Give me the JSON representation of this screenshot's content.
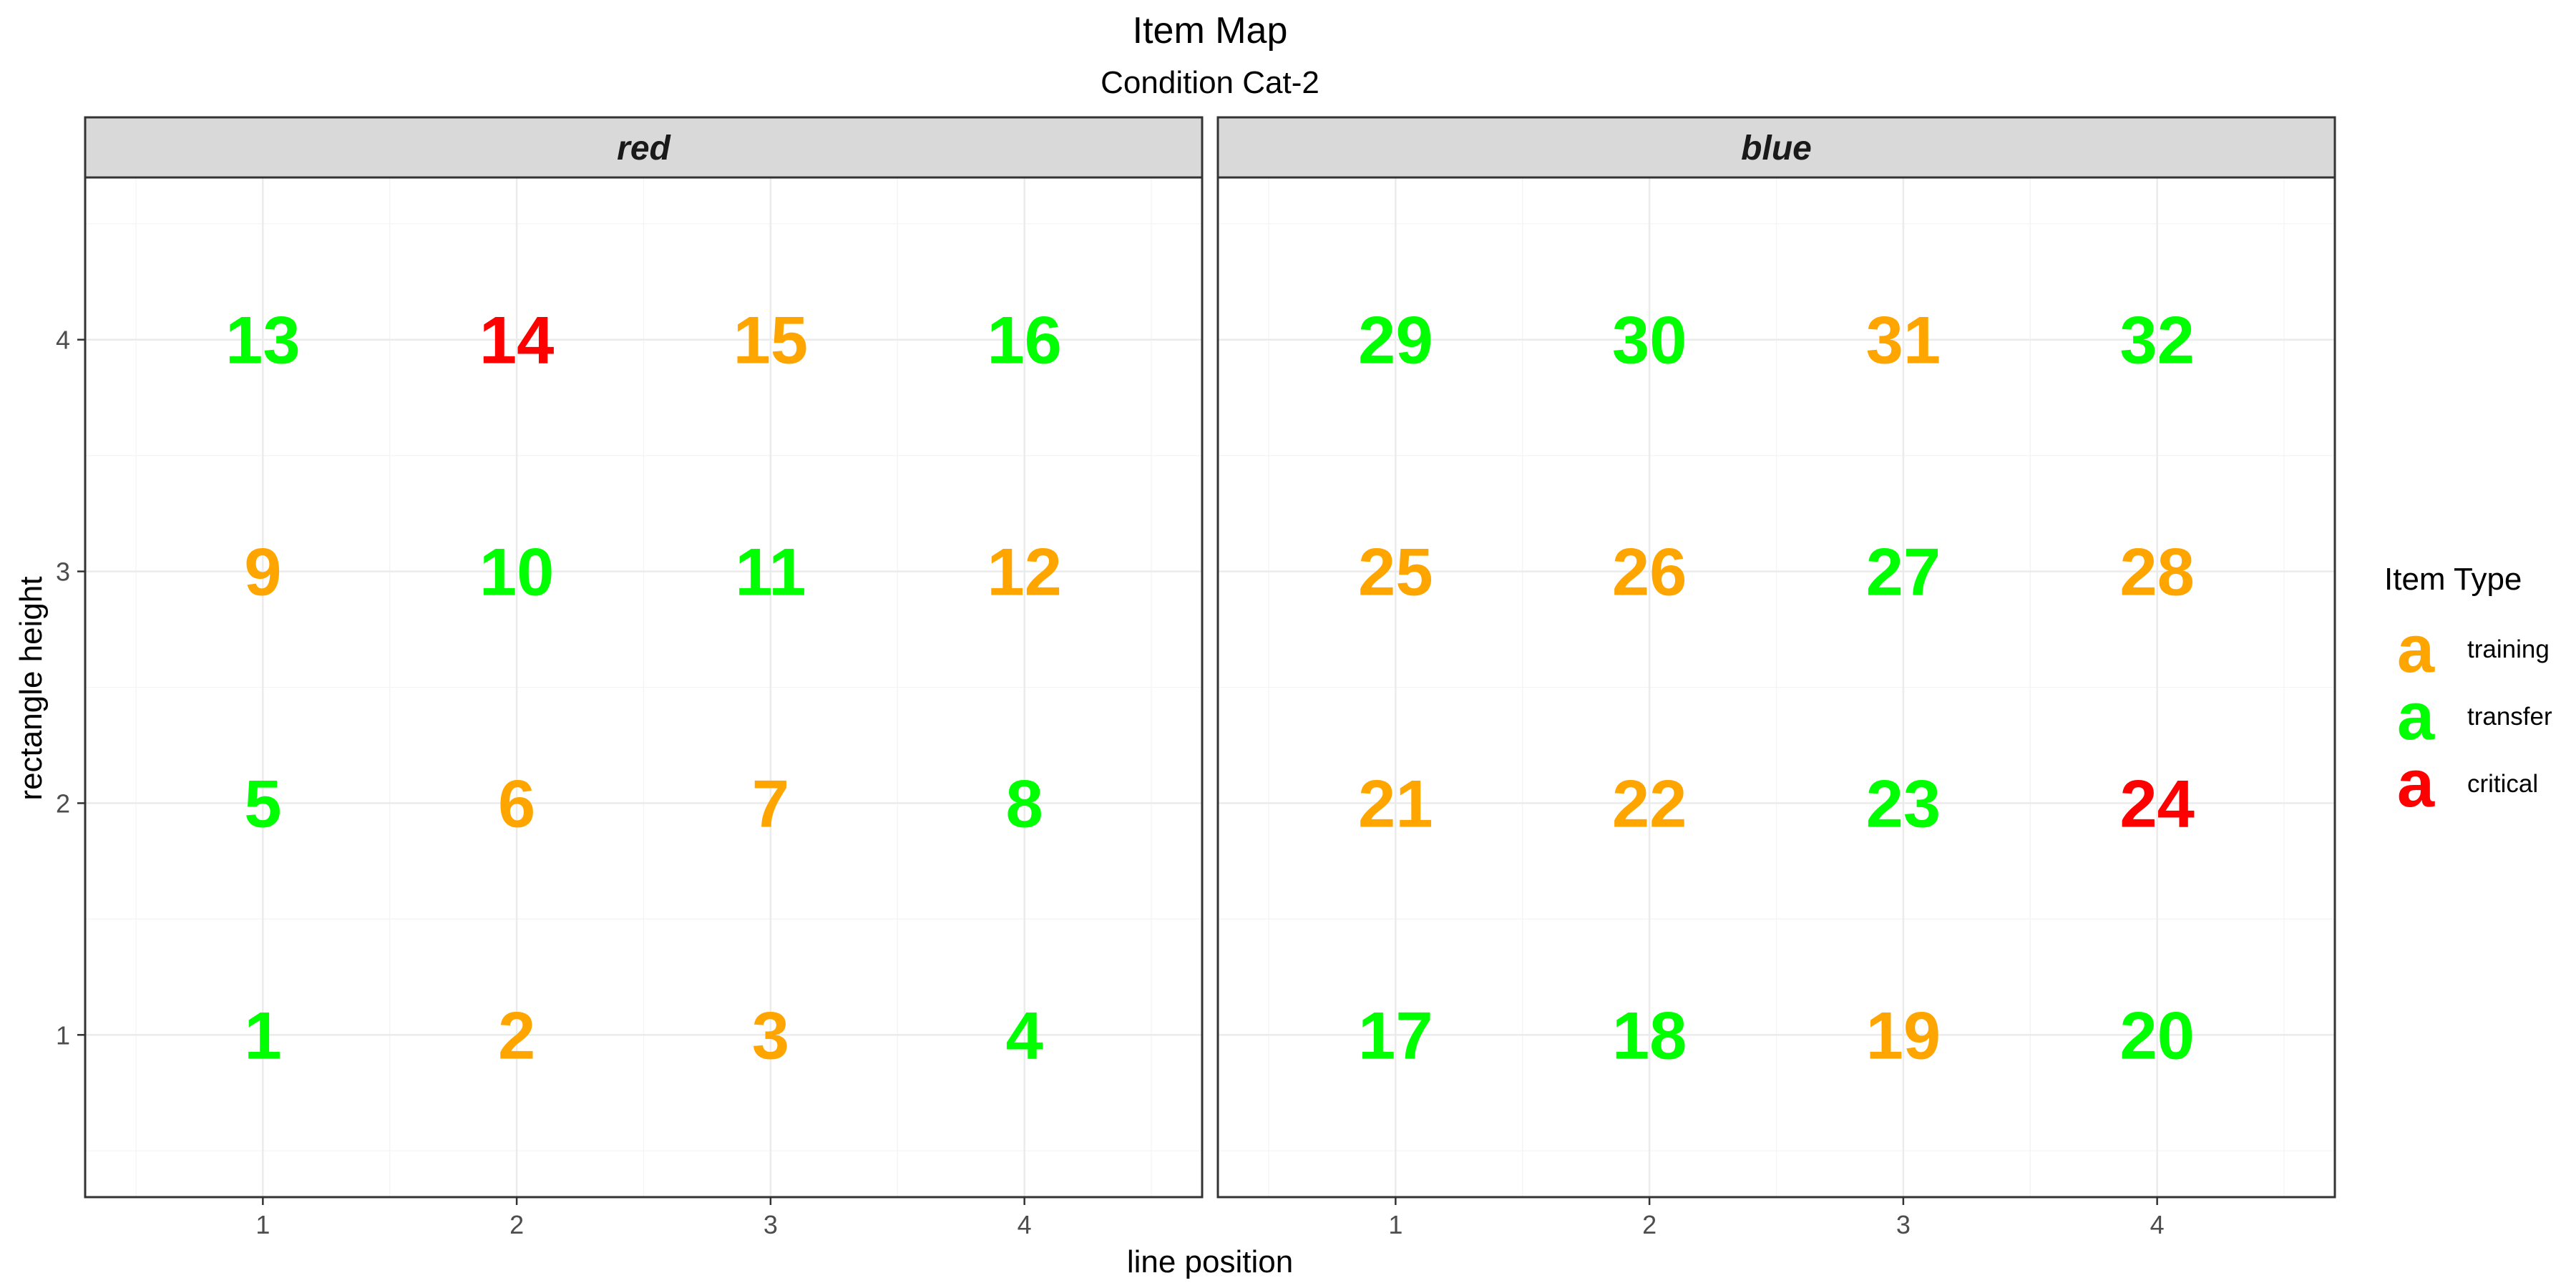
{
  "chart_data": {
    "type": "scatter",
    "title": "Item Map",
    "subtitle": "Condition Cat-2",
    "xlabel": "line position",
    "ylabel": "rectangle height",
    "xlim": [
      0.3,
      4.7
    ],
    "ylim": [
      0.3,
      4.7
    ],
    "x_ticks": [
      1,
      2,
      3,
      4
    ],
    "y_ticks": [
      1,
      2,
      3,
      4
    ],
    "grid": true,
    "legend": {
      "title": "Item Type",
      "position": "right",
      "key_glyph": "a",
      "entries": [
        {
          "label": "training",
          "color": "#FFA500"
        },
        {
          "label": "transfer",
          "color": "#00FF00"
        },
        {
          "label": "critical",
          "color": "#FF0000"
        }
      ]
    },
    "colors": {
      "training": "#FFA500",
      "transfer": "#00FF00",
      "critical": "#FF0000"
    },
    "panels": [
      {
        "name": "red",
        "points": [
          {
            "x": 1,
            "y": 1,
            "label": "1",
            "type": "transfer"
          },
          {
            "x": 2,
            "y": 1,
            "label": "2",
            "type": "training"
          },
          {
            "x": 3,
            "y": 1,
            "label": "3",
            "type": "training"
          },
          {
            "x": 4,
            "y": 1,
            "label": "4",
            "type": "transfer"
          },
          {
            "x": 1,
            "y": 2,
            "label": "5",
            "type": "transfer"
          },
          {
            "x": 2,
            "y": 2,
            "label": "6",
            "type": "training"
          },
          {
            "x": 3,
            "y": 2,
            "label": "7",
            "type": "training"
          },
          {
            "x": 4,
            "y": 2,
            "label": "8",
            "type": "transfer"
          },
          {
            "x": 1,
            "y": 3,
            "label": "9",
            "type": "training"
          },
          {
            "x": 2,
            "y": 3,
            "label": "10",
            "type": "transfer"
          },
          {
            "x": 3,
            "y": 3,
            "label": "11",
            "type": "transfer"
          },
          {
            "x": 4,
            "y": 3,
            "label": "12",
            "type": "training"
          },
          {
            "x": 1,
            "y": 4,
            "label": "13",
            "type": "transfer"
          },
          {
            "x": 2,
            "y": 4,
            "label": "14",
            "type": "critical"
          },
          {
            "x": 3,
            "y": 4,
            "label": "15",
            "type": "training"
          },
          {
            "x": 4,
            "y": 4,
            "label": "16",
            "type": "transfer"
          }
        ]
      },
      {
        "name": "blue",
        "points": [
          {
            "x": 1,
            "y": 1,
            "label": "17",
            "type": "transfer"
          },
          {
            "x": 2,
            "y": 1,
            "label": "18",
            "type": "transfer"
          },
          {
            "x": 3,
            "y": 1,
            "label": "19",
            "type": "training"
          },
          {
            "x": 4,
            "y": 1,
            "label": "20",
            "type": "transfer"
          },
          {
            "x": 1,
            "y": 2,
            "label": "21",
            "type": "training"
          },
          {
            "x": 2,
            "y": 2,
            "label": "22",
            "type": "training"
          },
          {
            "x": 3,
            "y": 2,
            "label": "23",
            "type": "transfer"
          },
          {
            "x": 4,
            "y": 2,
            "label": "24",
            "type": "critical"
          },
          {
            "x": 1,
            "y": 3,
            "label": "25",
            "type": "training"
          },
          {
            "x": 2,
            "y": 3,
            "label": "26",
            "type": "training"
          },
          {
            "x": 3,
            "y": 3,
            "label": "27",
            "type": "transfer"
          },
          {
            "x": 4,
            "y": 3,
            "label": "28",
            "type": "training"
          },
          {
            "x": 1,
            "y": 4,
            "label": "29",
            "type": "transfer"
          },
          {
            "x": 2,
            "y": 4,
            "label": "30",
            "type": "transfer"
          },
          {
            "x": 3,
            "y": 4,
            "label": "31",
            "type": "training"
          },
          {
            "x": 4,
            "y": 4,
            "label": "32",
            "type": "transfer"
          }
        ]
      }
    ]
  }
}
